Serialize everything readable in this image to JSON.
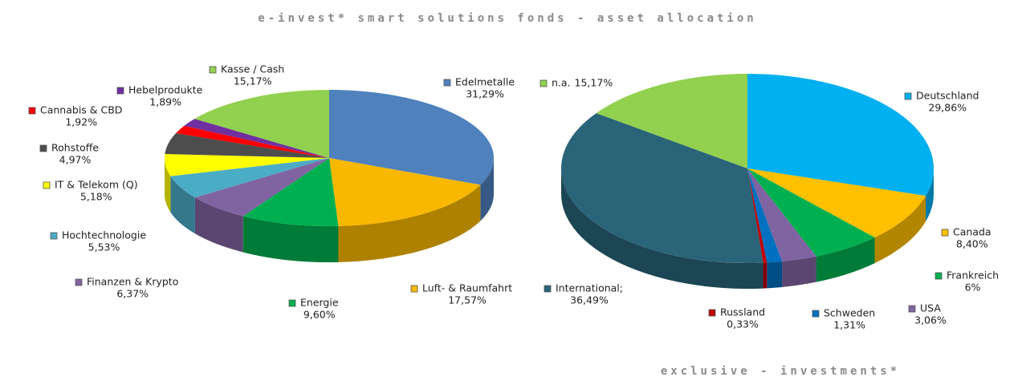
{
  "header": {
    "title": "e-invest* smart solutions fonds - asset allocation"
  },
  "footer": {
    "text": "exclusive - investments*"
  },
  "chart_data": [
    {
      "type": "pie",
      "categories": [
        "Edelmetalle",
        "Luft- & Raumfahrt",
        "Energie",
        "Finanzen & Krypto",
        "Hochtechnologie",
        "IT & Telekom (Q)",
        "Rohstoffe",
        "Cannabis & CBD",
        "Hebelprodukte",
        "Kasse / Cash"
      ],
      "values": [
        31.29,
        17.57,
        9.6,
        6.37,
        5.53,
        5.18,
        4.97,
        1.92,
        1.89,
        15.17
      ],
      "value_labels": [
        "31,29%",
        "17,57%",
        "9,60%",
        "6,37%",
        "5,53%",
        "5,18%",
        "4,97%",
        "1,92%",
        "1,89%",
        "15,17%"
      ],
      "colors": [
        "#4f81bd",
        "#f9b800",
        "#00b050",
        "#8064a2",
        "#4bacc6",
        "#ffff00",
        "#4d4d4d",
        "#ff0000",
        "#7030a0",
        "#92d050"
      ]
    },
    {
      "type": "pie",
      "categories": [
        "Deutschland",
        "Canada",
        "Frankreich",
        "USA",
        "Schweden",
        "Russland",
        "International;",
        "n.a."
      ],
      "values": [
        29.86,
        8.4,
        6,
        3.06,
        1.31,
        0.33,
        36.49,
        15.17
      ],
      "value_labels": [
        "29,86%",
        "8,40%",
        "6%",
        "3,06%",
        "1,31%",
        "0,33%",
        "36,49%",
        "15,17%"
      ],
      "colors": [
        "#00b0f0",
        "#ffc000",
        "#00b050",
        "#8064a2",
        "#0070c0",
        "#c00000",
        "#2a6478",
        "#92d050"
      ]
    }
  ]
}
